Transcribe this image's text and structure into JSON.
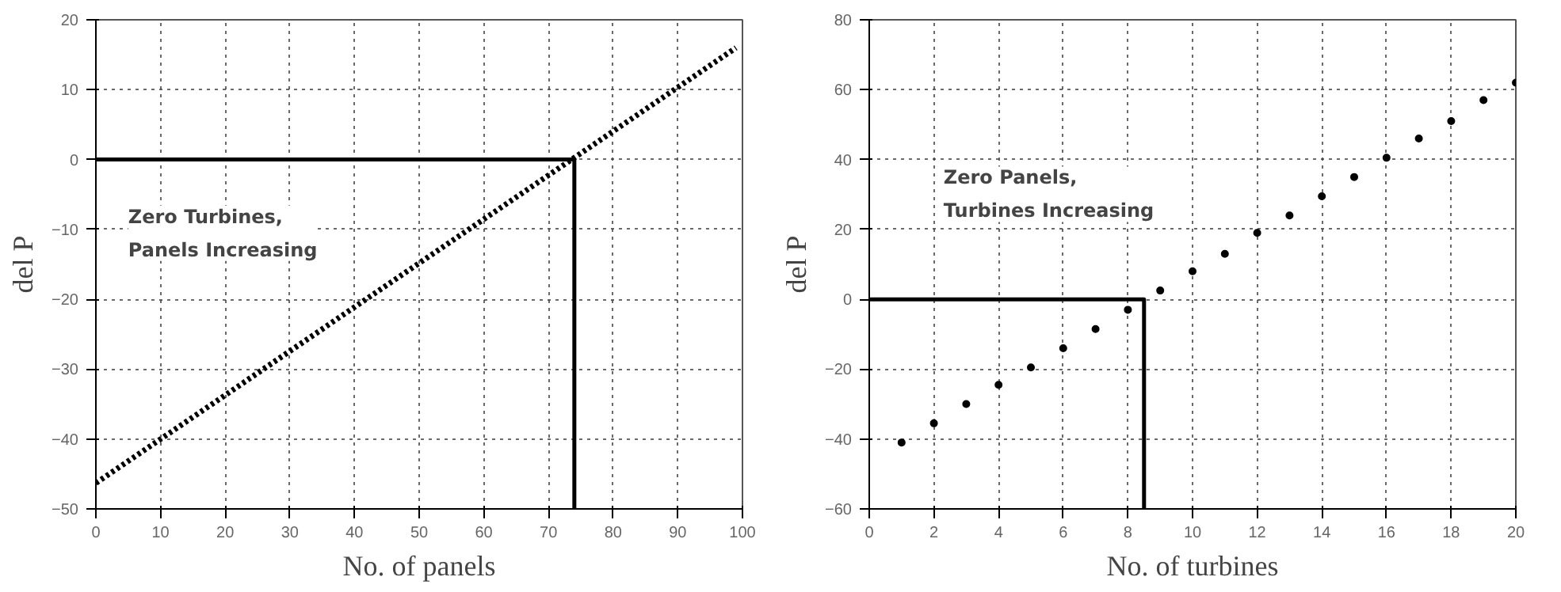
{
  "chart_data": [
    {
      "type": "line",
      "xlabel": "No. of panels",
      "ylabel": "del P",
      "xlim": [
        0,
        100
      ],
      "ylim": [
        -50,
        20
      ],
      "xticks": [
        0,
        10,
        20,
        30,
        40,
        50,
        60,
        70,
        80,
        90,
        100
      ],
      "yticks": [
        -50,
        -40,
        -30,
        -20,
        -10,
        0,
        10,
        20
      ],
      "grid": true,
      "line_style": "dotted",
      "series": [
        {
          "color": "#000000",
          "x": [
            0,
            99
          ],
          "values": [
            -46.3,
            16
          ]
        },
        {
          "type": "line",
          "color": "#000000",
          "line_style": "solid",
          "x": [
            0,
            74,
            74
          ],
          "values": [
            0,
            0,
            -50
          ]
        }
      ],
      "annotations": [
        "Zero Turbines,\nPanels Increasing"
      ]
    },
    {
      "type": "scatter",
      "xlabel": "No. of turbines",
      "ylabel": "del P",
      "xlim": [
        0,
        20
      ],
      "ylim": [
        -60,
        80
      ],
      "xticks": [
        0,
        2,
        4,
        6,
        8,
        10,
        12,
        14,
        16,
        18,
        20
      ],
      "yticks": [
        -60,
        -40,
        -20,
        0,
        20,
        40,
        60,
        80
      ],
      "grid": true,
      "marker": "circle",
      "series": [
        {
          "color": "#000000",
          "x": [
            1,
            2,
            3,
            4,
            5,
            6,
            7,
            8,
            9,
            10,
            11,
            12,
            13,
            14,
            15,
            16,
            17,
            18,
            19,
            20
          ],
          "values": [
            -41,
            -35.5,
            -30,
            -24.5,
            -19.5,
            -14,
            -8.5,
            -3,
            2.5,
            8,
            13,
            19,
            24,
            29.5,
            35,
            40.5,
            46,
            51,
            57,
            62
          ]
        },
        {
          "type": "line",
          "color": "#000000",
          "line_style": "solid",
          "marker": "none",
          "x": [
            0,
            8.5,
            8.5
          ],
          "values": [
            0,
            0,
            -60
          ]
        }
      ],
      "annotations": [
        "Zero Panels,\nTurbines  Increasing"
      ]
    }
  ]
}
